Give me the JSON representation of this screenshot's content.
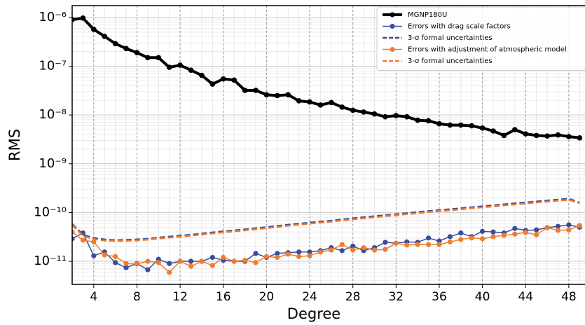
{
  "chart_data": {
    "type": "line",
    "xlabel": "Degree",
    "ylabel": "RMS",
    "log_y": true,
    "grid": true,
    "legend": "upper right",
    "x": [
      2,
      3,
      4,
      5,
      6,
      7,
      8,
      9,
      10,
      11,
      12,
      13,
      14,
      15,
      16,
      17,
      18,
      19,
      20,
      21,
      22,
      23,
      24,
      25,
      26,
      27,
      28,
      29,
      30,
      31,
      32,
      33,
      34,
      35,
      36,
      37,
      38,
      39,
      40,
      41,
      42,
      43,
      44,
      45,
      46,
      47,
      48,
      49
    ],
    "xlim": [
      2,
      49.5
    ],
    "xticks": [
      4,
      8,
      12,
      16,
      20,
      24,
      28,
      32,
      36,
      40,
      44,
      48
    ],
    "ylim": [
      3.36e-12,
      1.75e-06
    ],
    "yticks": [
      {
        "value": 1e-11,
        "label": "10⁻¹¹"
      },
      {
        "value": 1e-10,
        "label": "10⁻¹⁰"
      },
      {
        "value": 1e-09,
        "label": "10⁻⁹"
      },
      {
        "value": 1e-08,
        "label": "10⁻⁸"
      },
      {
        "value": 1e-07,
        "label": "10⁻⁷"
      },
      {
        "value": 1e-06,
        "label": "10⁻⁶"
      }
    ],
    "series": [
      {
        "name": "MGNP180U",
        "color": "#000000",
        "linestyle": "solid",
        "markers": true,
        "linewidth": 4,
        "values": [
          9e-07,
          9.7e-07,
          5.7e-07,
          4.1e-07,
          2.9e-07,
          2.3e-07,
          1.9e-07,
          1.5e-07,
          1.5e-07,
          9.5e-08,
          1.05e-07,
          8.3e-08,
          6.5e-08,
          4.3e-08,
          5.5e-08,
          5.2e-08,
          3.2e-08,
          3.2e-08,
          2.6e-08,
          2.5e-08,
          2.6e-08,
          1.95e-08,
          1.85e-08,
          1.6e-08,
          1.8e-08,
          1.45e-08,
          1.25e-08,
          1.15e-08,
          1.05e-08,
          9.2e-09,
          9.7e-09,
          9.2e-09,
          7.8e-09,
          7.6e-09,
          6.6e-09,
          6.2e-09,
          6.2e-09,
          6e-09,
          5.4e-09,
          4.7e-09,
          3.8e-09,
          5e-09,
          4.1e-09,
          3.8e-09,
          3.7e-09,
          3.9e-09,
          3.6e-09,
          3.4e-09
        ]
      },
      {
        "name": "Errors with drag scale factors",
        "color": "#3b4c99",
        "linestyle": "solid",
        "markers": true,
        "linewidth": 1.5,
        "values": [
          2.9e-11,
          3.8e-11,
          1.3e-11,
          1.55e-11,
          9.4e-12,
          7.4e-12,
          9e-12,
          6.7e-12,
          1.1e-11,
          9e-12,
          1e-11,
          1e-11,
          1e-11,
          1.2e-11,
          1.05e-11,
          1e-11,
          1e-11,
          1.45e-11,
          1.2e-11,
          1.45e-11,
          1.5e-11,
          1.55e-11,
          1.55e-11,
          1.65e-11,
          1.9e-11,
          1.65e-11,
          2.05e-11,
          1.65e-11,
          1.9e-11,
          2.45e-11,
          2.35e-11,
          2.5e-11,
          2.45e-11,
          3e-11,
          2.6e-11,
          3.2e-11,
          3.8e-11,
          3.2e-11,
          4.1e-11,
          4e-11,
          3.8e-11,
          4.7e-11,
          4.3e-11,
          4.4e-11,
          4.9e-11,
          5.2e-11,
          5.6e-11,
          5e-11
        ]
      },
      {
        "name": "3-σ formal uncertainties",
        "color": "#3b4c99",
        "linestyle": "dashed",
        "markers": false,
        "linewidth": 2.5,
        "values": [
          5.8e-11,
          3.5e-11,
          3e-11,
          2.8e-11,
          2.7e-11,
          2.75e-11,
          2.8e-11,
          2.9e-11,
          3.05e-11,
          3.2e-11,
          3.35e-11,
          3.5e-11,
          3.7e-11,
          3.9e-11,
          4.1e-11,
          4.3e-11,
          4.5e-11,
          4.75e-11,
          5e-11,
          5.3e-11,
          5.6e-11,
          5.9e-11,
          6.2e-11,
          6.5e-11,
          6.8e-11,
          7.2e-11,
          7.6e-11,
          8e-11,
          8.4e-11,
          8.8e-11,
          9.2e-11,
          9.7e-11,
          1.02e-10,
          1.07e-10,
          1.12e-10,
          1.17e-10,
          1.22e-10,
          1.28e-10,
          1.34e-10,
          1.4e-10,
          1.47e-10,
          1.54e-10,
          1.61e-10,
          1.68e-10,
          1.76e-10,
          1.84e-10,
          1.92e-10,
          1.6e-10
        ]
      },
      {
        "name": "Errors with adjustment of atmospheric model",
        "color": "#ee7d30",
        "linestyle": "solid",
        "markers": true,
        "linewidth": 1.5,
        "values": [
          4e-11,
          2.7e-11,
          2.5e-11,
          1.35e-11,
          1.25e-11,
          9e-12,
          8.8e-12,
          1e-11,
          9.4e-12,
          5.9e-12,
          1e-11,
          7.9e-12,
          1e-11,
          8.2e-12,
          1.2e-11,
          1e-11,
          1.05e-11,
          9.4e-12,
          1.25e-11,
          1.2e-11,
          1.4e-11,
          1.25e-11,
          1.3e-11,
          1.55e-11,
          1.7e-11,
          2.2e-11,
          1.7e-11,
          1.9e-11,
          1.7e-11,
          1.75e-11,
          2.35e-11,
          2.15e-11,
          2.2e-11,
          2.2e-11,
          2.2e-11,
          2.5e-11,
          2.8e-11,
          3e-11,
          2.9e-11,
          3.2e-11,
          3.4e-11,
          3.6e-11,
          3.9e-11,
          3.5e-11,
          4.9e-11,
          4.3e-11,
          4.4e-11,
          5.4e-11
        ]
      },
      {
        "name": "3-σ formal uncertainties",
        "color": "#ee7d30",
        "linestyle": "dashed",
        "markers": false,
        "linewidth": 2.5,
        "values": [
          5.5e-11,
          3.3e-11,
          2.85e-11,
          2.65e-11,
          2.6e-11,
          2.62e-11,
          2.68e-11,
          2.78e-11,
          2.92e-11,
          3.05e-11,
          3.2e-11,
          3.35e-11,
          3.52e-11,
          3.72e-11,
          3.92e-11,
          4.1e-11,
          4.3e-11,
          4.52e-11,
          4.78e-11,
          5.05e-11,
          5.35e-11,
          5.62e-11,
          5.9e-11,
          6.2e-11,
          6.5e-11,
          6.85e-11,
          7.25e-11,
          7.6e-11,
          8e-11,
          8.4e-11,
          8.8e-11,
          9.25e-11,
          9.7e-11,
          1.02e-10,
          1.07e-10,
          1.11e-10,
          1.16e-10,
          1.22e-10,
          1.28e-10,
          1.33e-10,
          1.4e-10,
          1.46e-10,
          1.53e-10,
          1.6e-10,
          1.67e-10,
          1.75e-10,
          1.82e-10,
          1.55e-10
        ]
      }
    ]
  }
}
